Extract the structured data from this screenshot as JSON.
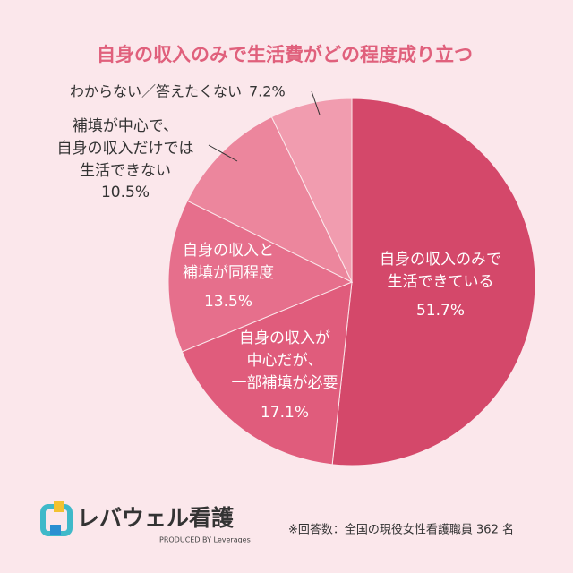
{
  "chart_data": {
    "type": "pie",
    "title": "自身の収入のみで生活費がどの程度成り立つ",
    "categories": [
      "自身の収入のみで\n生活できている",
      "自身の収入が\n中心だが、\n一部補填が必要",
      "自身の収入と\n補填が同程度",
      "補填が中心で、\n自身の収入だけでは\n生活できない",
      "わからない／答えたくない"
    ],
    "values": [
      51.7,
      17.1,
      13.5,
      10.5,
      7.2
    ],
    "value_labels": [
      "51.7%",
      "17.1%",
      "13.5%",
      "10.5%",
      "7.2%"
    ],
    "colors": [
      "#d4486a",
      "#e05c7c",
      "#e66f8c",
      "#ec869d",
      "#f19caf"
    ]
  },
  "footer": {
    "logo": "レバウェル看護",
    "produced_by": "PRODUCED BY Leverages",
    "note": "※回答数：全国の現役女性看護職員 362 名"
  }
}
